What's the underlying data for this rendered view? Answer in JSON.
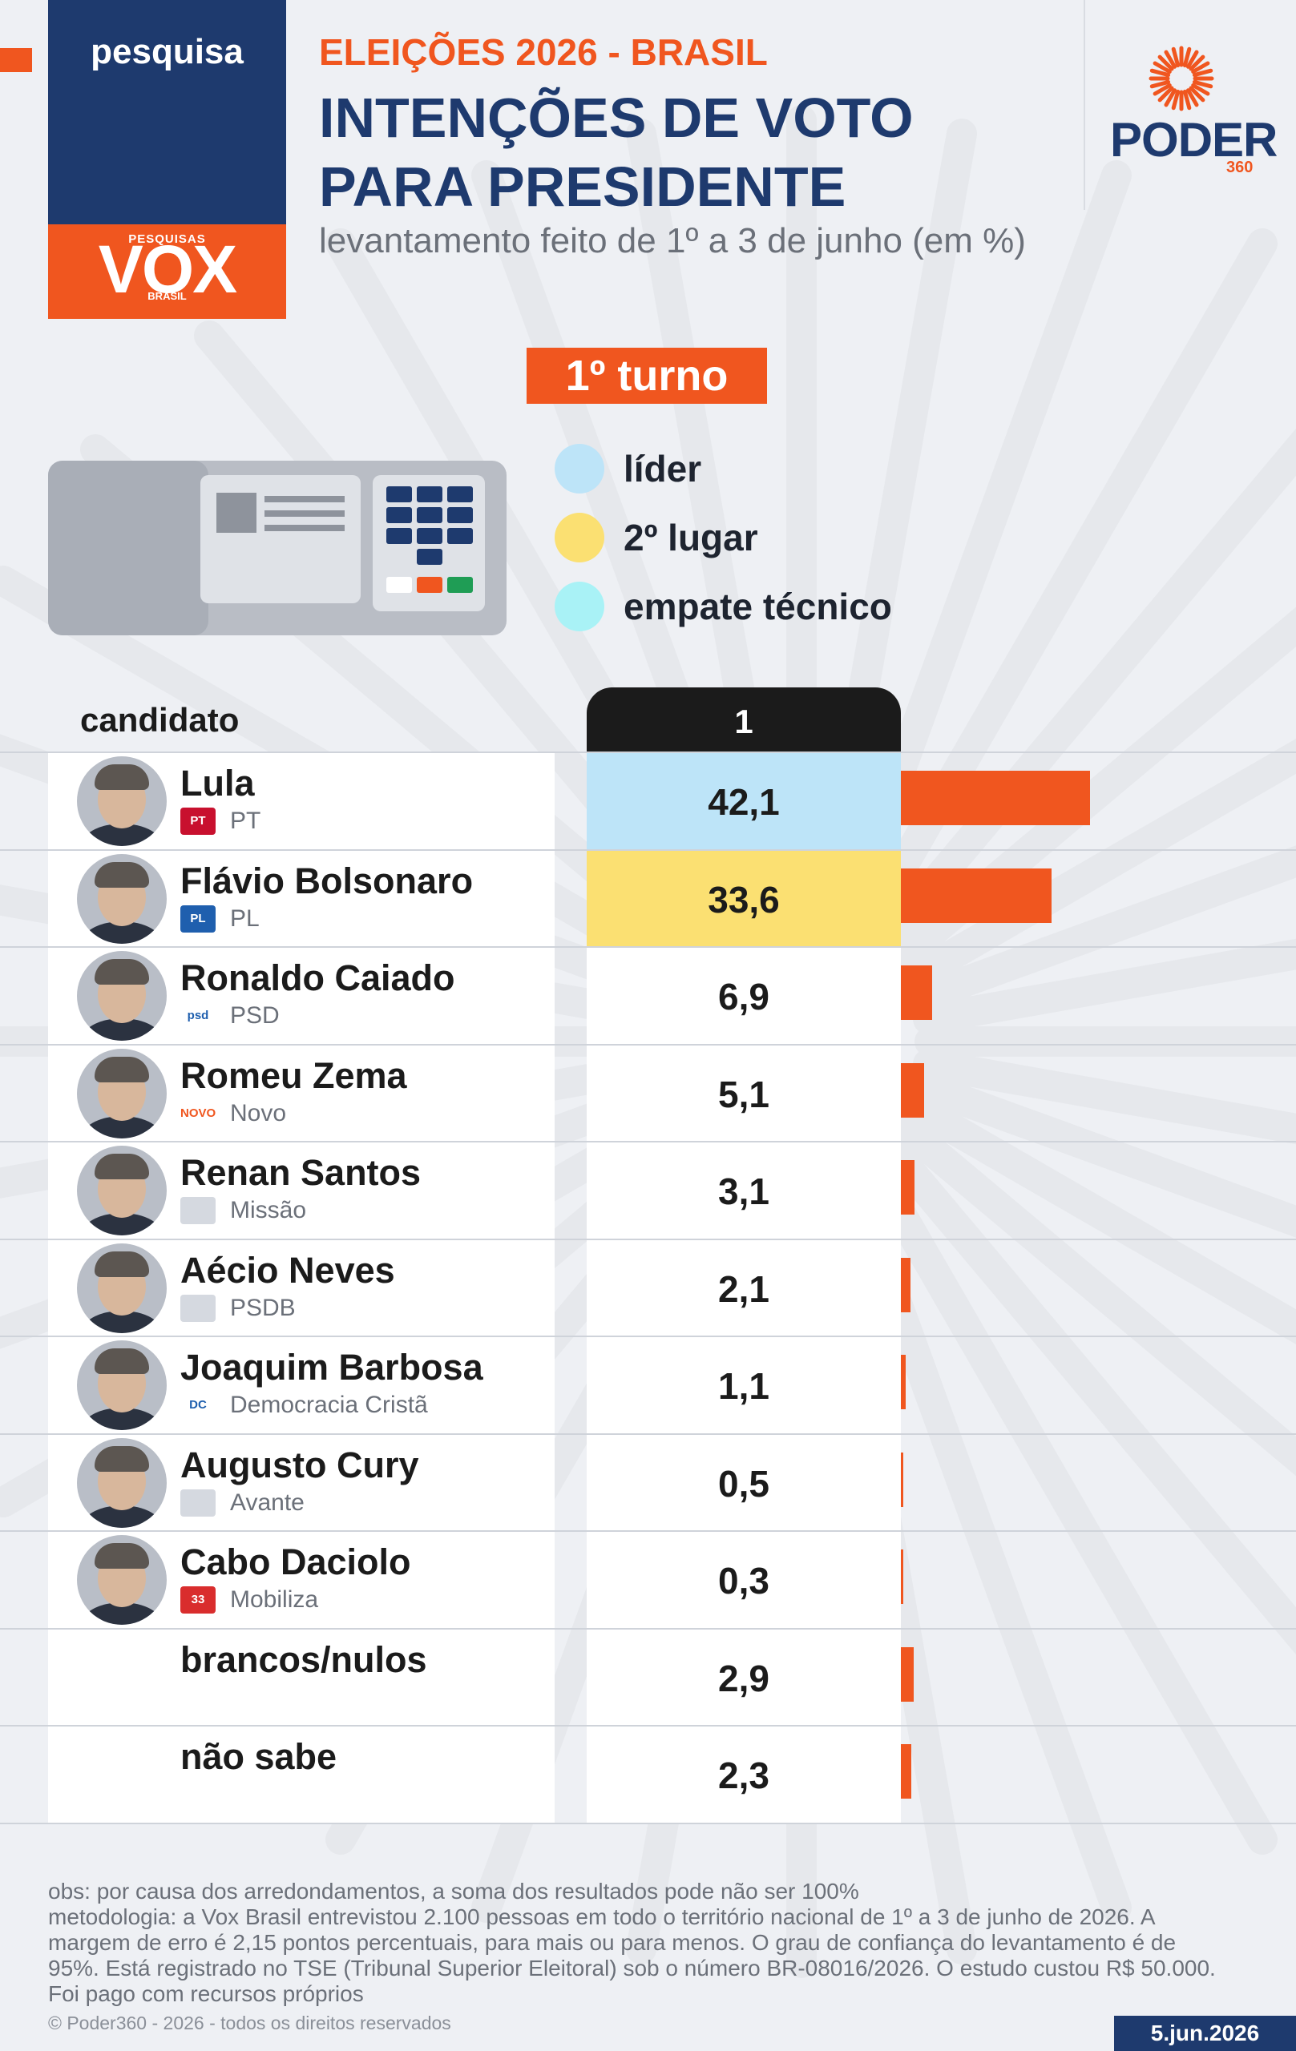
{
  "header": {
    "brand_label": "pesquisa",
    "institute_small": "PESQUISAS",
    "institute_name": "VOX",
    "institute_country": "BRASIL",
    "kicker": "ELEIÇÕES 2026 - BRASIL",
    "title_line1": "INTENÇÕES DE VOTO",
    "title_line2": "PARA PRESIDENTE",
    "subtitle": "levantamento feito de 1º a 3 de junho (em %)",
    "publisher": "PODER",
    "publisher_suffix": "360"
  },
  "round_label": "1º turno",
  "legend": [
    {
      "label": "líder",
      "color": "#bde4f8"
    },
    {
      "label": "2º lugar",
      "color": "#fbe072"
    },
    {
      "label": "empate técnico",
      "color": "#a9f2f6"
    }
  ],
  "chart_data": {
    "type": "table",
    "column_header_candidate": "candidato",
    "column_header_value": "1",
    "unit": "%",
    "rows": [
      {
        "name": "Lula",
        "party": "PT",
        "party_logo": "PT",
        "value": 42.1,
        "label": "42,1",
        "highlight": "leader"
      },
      {
        "name": "Flávio Bolsonaro",
        "party": "PL",
        "party_logo": "PL",
        "value": 33.6,
        "label": "33,6",
        "highlight": "second"
      },
      {
        "name": "Ronaldo Caiado",
        "party": "PSD",
        "party_logo": "psd",
        "value": 6.9,
        "label": "6,9",
        "highlight": "none"
      },
      {
        "name": "Romeu Zema",
        "party": "Novo",
        "party_logo": "NOVO",
        "value": 5.1,
        "label": "5,1",
        "highlight": "none"
      },
      {
        "name": "Renan Santos",
        "party": "Missão",
        "party_logo": "",
        "value": 3.1,
        "label": "3,1",
        "highlight": "none"
      },
      {
        "name": "Aécio Neves",
        "party": "PSDB",
        "party_logo": "",
        "value": 2.1,
        "label": "2,1",
        "highlight": "none"
      },
      {
        "name": "Joaquim Barbosa",
        "party": "Democracia Cristã",
        "party_logo": "DC",
        "value": 1.1,
        "label": "1,1",
        "highlight": "none"
      },
      {
        "name": "Augusto Cury",
        "party": "Avante",
        "party_logo": "",
        "value": 0.5,
        "label": "0,5",
        "highlight": "none"
      },
      {
        "name": "Cabo Daciolo",
        "party": "Mobiliza",
        "party_logo": "33",
        "value": 0.3,
        "label": "0,3",
        "highlight": "none"
      },
      {
        "name": "brancos/nulos",
        "party": "",
        "party_logo": "",
        "value": 2.9,
        "label": "2,9",
        "highlight": "none"
      },
      {
        "name": "não sabe",
        "party": "",
        "party_logo": "",
        "value": 2.3,
        "label": "2,3",
        "highlight": "none"
      }
    ],
    "highlight_colors": {
      "leader": "#bde4f8",
      "second": "#fbe072",
      "none": "#ffffff"
    },
    "bar_color": "#f0561f",
    "xlim": [
      0,
      42.1
    ]
  },
  "notes": {
    "obs": "obs: por causa dos arredondamentos, a soma dos resultados pode não ser 100%",
    "method_l1": "metodologia: a Vox Brasil entrevistou 2.100 pessoas em todo o território nacional de 1º a 3 de junho de 2026. A",
    "method_l2": "margem de erro é 2,15 pontos percentuais, para mais ou para menos. O grau de confiança do levantamento é de",
    "method_l3": "95%. Está registrado no TSE (Tribunal Superior Eleitoral) sob o número BR-08016/2026. O estudo custou R$ 50.000.",
    "method_l4": "Foi pago com recursos próprios",
    "copyright": "© Poder360 - 2026 - todos os direitos reservados",
    "date": "5.jun.2026"
  },
  "colors": {
    "navy": "#1e3a6e",
    "orange": "#f0561f",
    "background": "#eef0f4"
  }
}
